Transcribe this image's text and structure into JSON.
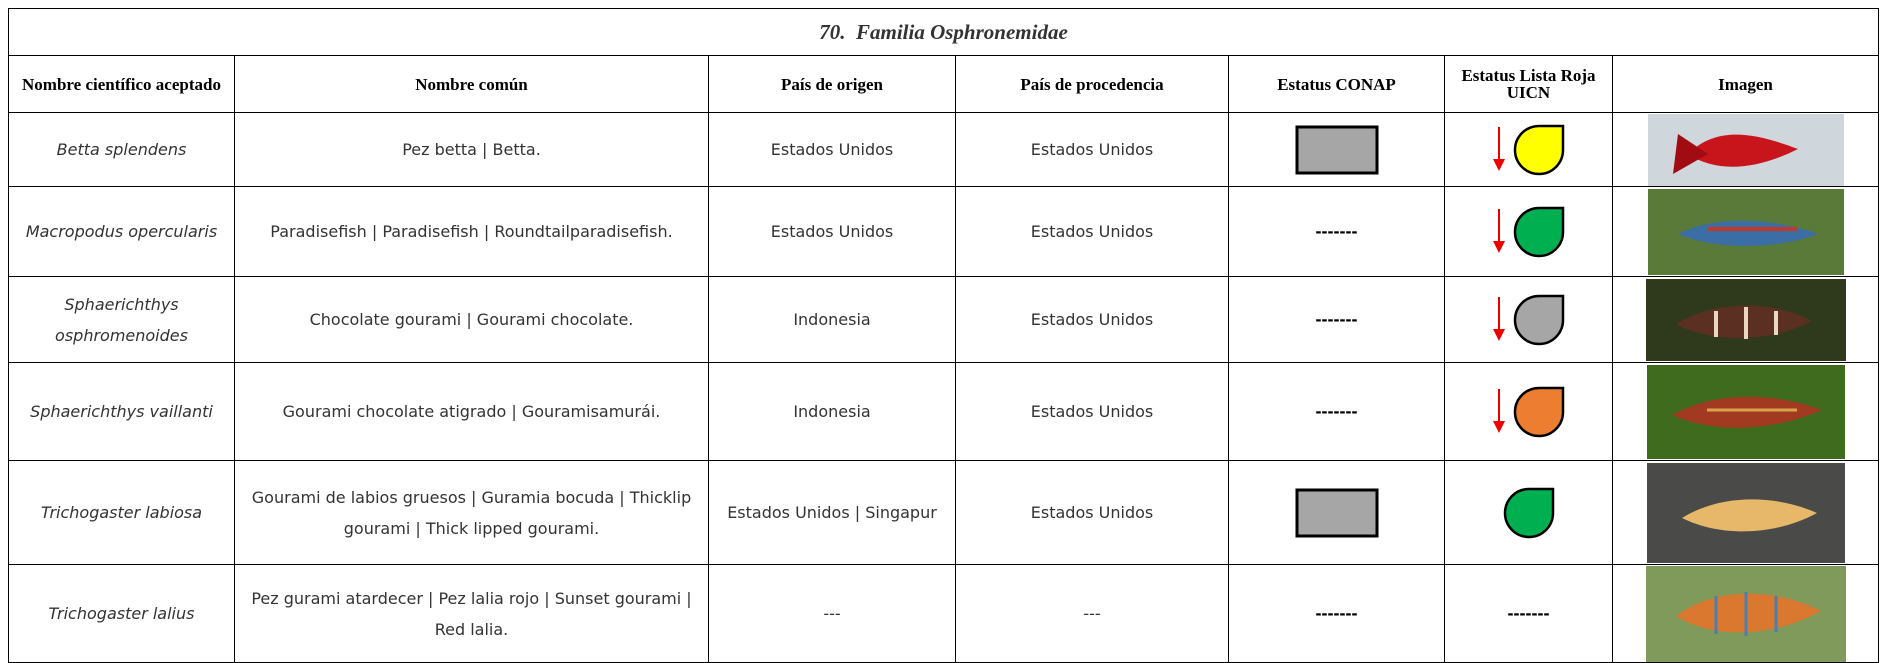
{
  "header": {
    "title": "70.  Familia Osphronemidae"
  },
  "table": {
    "columns": [
      "Nombre científico aceptado",
      "Nombre común",
      "País de origen",
      "País de procedencia",
      "Estatus CONAP",
      "Estatus Lista Roja UICN",
      "Imagen"
    ],
    "rows": [
      {
        "scientific": "Betta splendens",
        "common": "Pez betta | Betta.",
        "origin": "Estados Unidos",
        "source": "Estados Unidos"
      },
      {
        "scientific": "Macropodus opercularis",
        "common": "Paradisefish | Paradisefish | Roundtailparadisefish.",
        "origin": "Estados Unidos",
        "source": "Estados Unidos",
        "conap": "-------"
      },
      {
        "scientific": "Sphaerichthys osphromenoides",
        "common": "Chocolate gourami | Gourami chocolate.",
        "origin": "Indonesia",
        "source": "Estados Unidos",
        "conap": "-------"
      },
      {
        "scientific": "Sphaerichthys vaillanti",
        "common": "Gourami chocolate atigrado | Gouramisamurái.",
        "origin": "Indonesia",
        "source": "Estados Unidos",
        "conap": "-------"
      },
      {
        "scientific": "Trichogaster labiosa",
        "common": "Gourami de labios gruesos | Guramia bocuda | Thicklip gourami | Thick lipped gourami.",
        "origin": "Estados Unidos | Singapur",
        "source": "Estados Unidos"
      },
      {
        "scientific": "Trichogaster lalius",
        "common": "Pez gurami atardecer | Pez lalia rojo | Sunset gourami | Red lalia.",
        "origin": "---",
        "source": "---",
        "conap": "-------",
        "uicn": "-------"
      }
    ]
  }
}
